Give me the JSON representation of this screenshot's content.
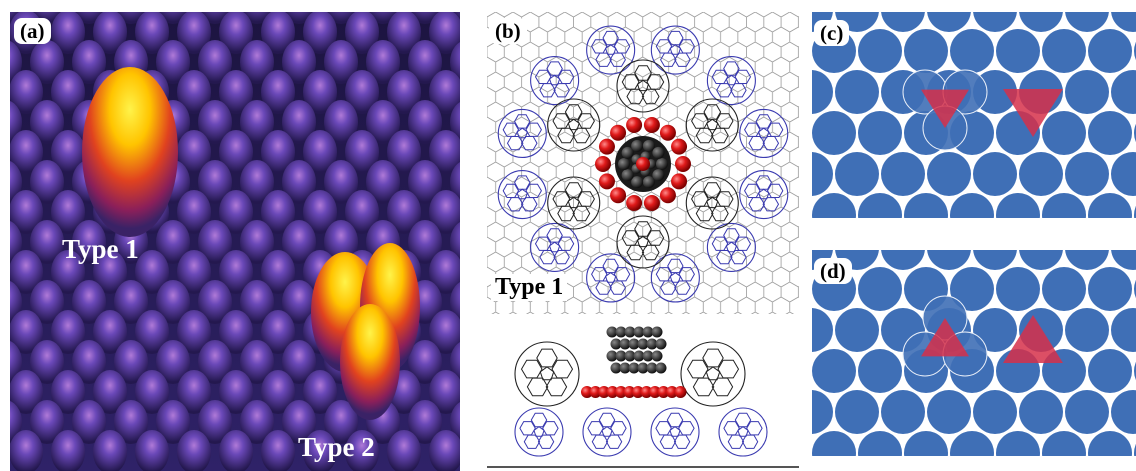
{
  "panels": {
    "a": {
      "tag": "(a)",
      "type1": "Type 1",
      "type2": "Type 2"
    },
    "b": {
      "tag": "(b)",
      "type1": "Type 1"
    },
    "c": {
      "tag": "(c)"
    },
    "d": {
      "tag": "(d)"
    }
  },
  "colors": {
    "surface_dark": "#2a1e5e",
    "surface_mid": "#5b3ea8",
    "peak_hot": "#ffd400",
    "peak_warm": "#d8242a",
    "sphere_blue": "#3f6fb6",
    "triangle_red": "#d6304a",
    "cage_blue": "#3a3ab0",
    "cage_black": "#222222",
    "atom_red": "#e01a1a"
  }
}
